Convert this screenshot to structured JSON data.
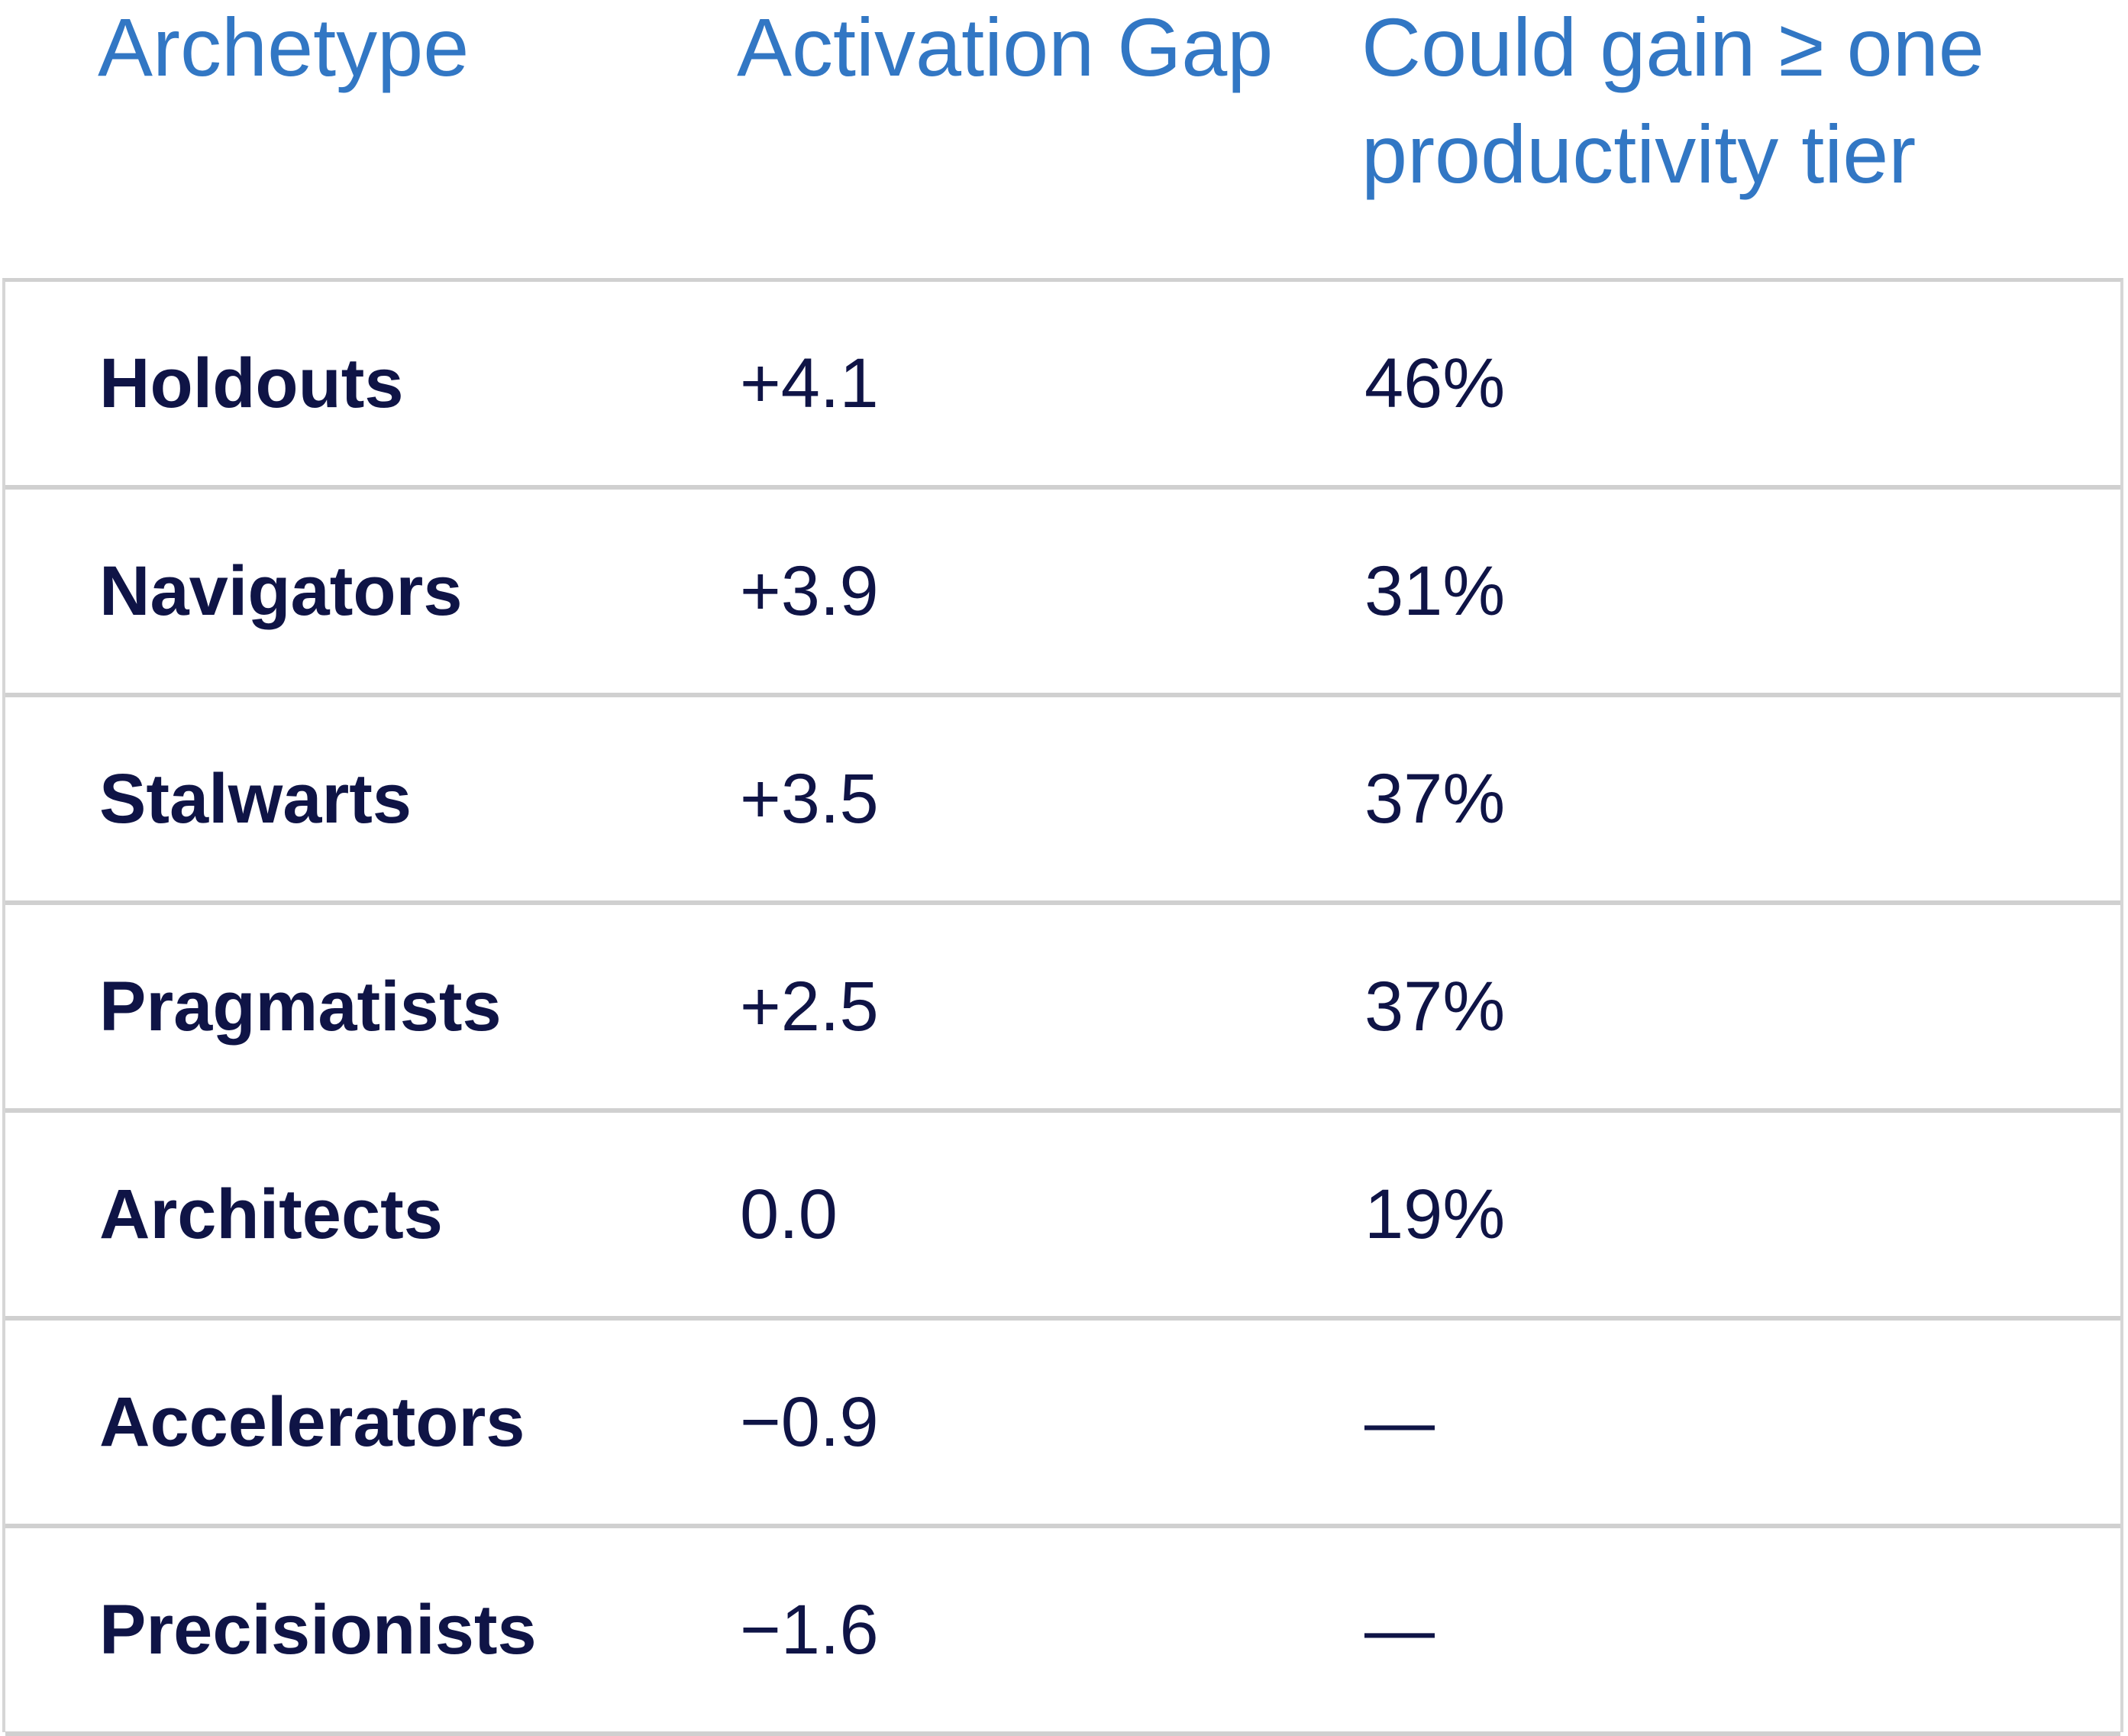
{
  "table": {
    "headers": {
      "archetype": "Archetype",
      "activation_gap": "Activation Gap",
      "could_gain": "Could gain ≥ one productivity tier"
    },
    "rows": [
      {
        "archetype": "Holdouts",
        "activation_gap": "+4.1",
        "could_gain": "46%"
      },
      {
        "archetype": "Navigators",
        "activation_gap": "+3.9",
        "could_gain": "31%"
      },
      {
        "archetype": "Stalwarts",
        "activation_gap": "+3.5",
        "could_gain": "37%"
      },
      {
        "archetype": "Pragmatists",
        "activation_gap": "+2.5",
        "could_gain": "37%"
      },
      {
        "archetype": "Architects",
        "activation_gap": "0.0",
        "could_gain": "19%"
      },
      {
        "archetype": "Accelerators",
        "activation_gap": "−0.9",
        "could_gain": "—"
      },
      {
        "archetype": "Precisionists",
        "activation_gap": "−1.6",
        "could_gain": "—"
      }
    ]
  },
  "colors": {
    "header_text": "#3277c4",
    "body_text": "#0f1446",
    "border": "#d0d0d0"
  }
}
